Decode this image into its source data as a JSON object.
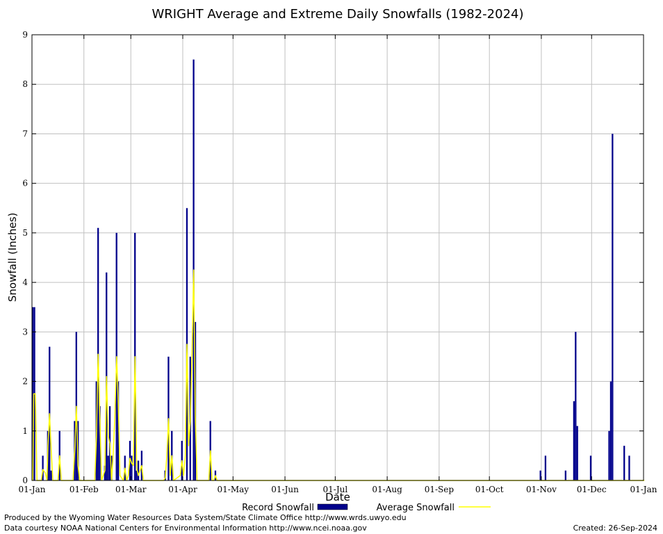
{
  "chart_data": {
    "type": "bar",
    "title": "WRIGHT Average and Extreme Daily Snowfalls (1982-2024)",
    "xlabel": "Date",
    "ylabel": "Snowfall (Inches)",
    "ylim": [
      0,
      9
    ],
    "yticks": [
      0,
      1,
      2,
      3,
      4,
      5,
      6,
      7,
      8,
      9
    ],
    "xlim": [
      0,
      365
    ],
    "xticks": [
      {
        "day": 0,
        "label": "01-Jan"
      },
      {
        "day": 31,
        "label": "01-Feb"
      },
      {
        "day": 59,
        "label": "01-Mar"
      },
      {
        "day": 90,
        "label": "01-Apr"
      },
      {
        "day": 120,
        "label": "01-May"
      },
      {
        "day": 151,
        "label": "01-Jun"
      },
      {
        "day": 181,
        "label": "01-Jul"
      },
      {
        "day": 212,
        "label": "01-Aug"
      },
      {
        "day": 243,
        "label": "01-Sep"
      },
      {
        "day": 273,
        "label": "01-Oct"
      },
      {
        "day": 304,
        "label": "01-Nov"
      },
      {
        "day": 334,
        "label": "01-Dec"
      },
      {
        "day": 365,
        "label": "01-Jan"
      }
    ],
    "grid": true,
    "legend_position": "bottom",
    "series": [
      {
        "name": "Record Snowfall",
        "type": "bar",
        "color": "#00008b",
        "points": [
          [
            0,
            3.5
          ],
          [
            1,
            3.5
          ],
          [
            6,
            0.5
          ],
          [
            9,
            1.0
          ],
          [
            10,
            2.7
          ],
          [
            11,
            0.2
          ],
          [
            16,
            1.0
          ],
          [
            25,
            1.2
          ],
          [
            26,
            3.0
          ],
          [
            27,
            1.2
          ],
          [
            38,
            2.0
          ],
          [
            39,
            5.1
          ],
          [
            40,
            1.5
          ],
          [
            43,
            0.3
          ],
          [
            44,
            4.2
          ],
          [
            45,
            0.5
          ],
          [
            46,
            1.5
          ],
          [
            47,
            0.5
          ],
          [
            50,
            5.0
          ],
          [
            51,
            2.0
          ],
          [
            55,
            0.5
          ],
          [
            58,
            0.8
          ],
          [
            59,
            0.5
          ],
          [
            61,
            5.0
          ],
          [
            62,
            0.2
          ],
          [
            63,
            0.4
          ],
          [
            65,
            0.6
          ],
          [
            79,
            0.2
          ],
          [
            81,
            2.5
          ],
          [
            83,
            1.0
          ],
          [
            89,
            0.8
          ],
          [
            92,
            5.5
          ],
          [
            94,
            2.5
          ],
          [
            96,
            8.5
          ],
          [
            97,
            3.2
          ],
          [
            106,
            1.2
          ],
          [
            109,
            0.2
          ],
          [
            303,
            0.2
          ],
          [
            306,
            0.5
          ],
          [
            318,
            0.2
          ],
          [
            323,
            1.6
          ],
          [
            324,
            3.0
          ],
          [
            325,
            1.1
          ],
          [
            333,
            0.5
          ],
          [
            344,
            1.0
          ],
          [
            345,
            2.0
          ],
          [
            346,
            7.0
          ],
          [
            353,
            0.7
          ],
          [
            356,
            0.5
          ]
        ]
      },
      {
        "name": "Average Snowfall",
        "type": "line",
        "color": "#ffff00",
        "points": [
          [
            0,
            0.0
          ],
          [
            0.5,
            1.75
          ],
          [
            1.5,
            1.75
          ],
          [
            2.5,
            0.0
          ],
          [
            5,
            0.0
          ],
          [
            6,
            0.22
          ],
          [
            7.5,
            0.15
          ],
          [
            8.5,
            0.0
          ],
          [
            9,
            0.7
          ],
          [
            10,
            1.35
          ],
          [
            11,
            0.6
          ],
          [
            12,
            0.0
          ],
          [
            15,
            0.0
          ],
          [
            16,
            0.5
          ],
          [
            17,
            0.0
          ],
          [
            24,
            0.0
          ],
          [
            25,
            0.6
          ],
          [
            26,
            1.5
          ],
          [
            27,
            0.3
          ],
          [
            28,
            0.0
          ],
          [
            37,
            0.0
          ],
          [
            38,
            0.9
          ],
          [
            39,
            2.55
          ],
          [
            40,
            1.3
          ],
          [
            41,
            0.0
          ],
          [
            43,
            0.2
          ],
          [
            44,
            2.1
          ],
          [
            45,
            0.9
          ],
          [
            46,
            0.75
          ],
          [
            47,
            0.0
          ],
          [
            48,
            0.55
          ],
          [
            49,
            1.3
          ],
          [
            50,
            2.5
          ],
          [
            51,
            1.6
          ],
          [
            52,
            0.1
          ],
          [
            54,
            0.0
          ],
          [
            55,
            0.25
          ],
          [
            56,
            0.0
          ],
          [
            57,
            0.1
          ],
          [
            58,
            0.45
          ],
          [
            59,
            0.35
          ],
          [
            60,
            0.3
          ],
          [
            61,
            2.5
          ],
          [
            62,
            0.25
          ],
          [
            63,
            0.1
          ],
          [
            64,
            0.2
          ],
          [
            65,
            0.3
          ],
          [
            66,
            0.0
          ],
          [
            78,
            0.0
          ],
          [
            79,
            0.05
          ],
          [
            80,
            0.5
          ],
          [
            81,
            1.25
          ],
          [
            82,
            0.1
          ],
          [
            83,
            0.5
          ],
          [
            84,
            0.0
          ],
          [
            88,
            0.1
          ],
          [
            89,
            0.4
          ],
          [
            90,
            0.1
          ],
          [
            91,
            0.5
          ],
          [
            92,
            2.75
          ],
          [
            93,
            0.7
          ],
          [
            94,
            1.2
          ],
          [
            95,
            2.5
          ],
          [
            96,
            4.25
          ],
          [
            97,
            1.3
          ],
          [
            98,
            0.0
          ],
          [
            105,
            0.0
          ],
          [
            106,
            0.6
          ],
          [
            107,
            0.0
          ],
          [
            108,
            0.0
          ],
          [
            109,
            0.1
          ],
          [
            110,
            0.0
          ],
          [
            365,
            0.0
          ]
        ]
      }
    ]
  },
  "footer": {
    "credit_line_1": "Produced by the Wyoming Water Resources Data System/State Climate Office http://www.wrds.uwyo.edu",
    "credit_line_2": "Data courtesy NOAA National Centers for Environmental Information http://www.ncei.noaa.gov",
    "created": "Created:  26-Sep-2024"
  }
}
